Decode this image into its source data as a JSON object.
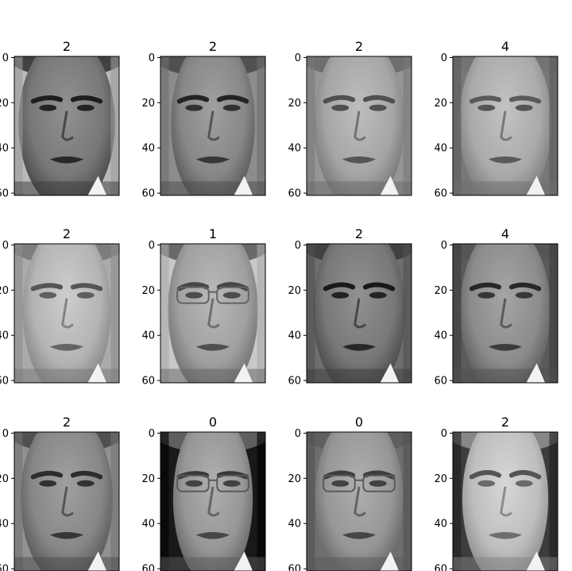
{
  "figure": {
    "type": "image-grid",
    "rows": 3,
    "cols": 4,
    "colormap": "gray",
    "y_ticks": [
      0,
      20,
      40,
      60
    ],
    "panels": [
      {
        "title": "2",
        "face": {
          "faceW": 0.92,
          "brow": 0.45,
          "bg": 185,
          "fg": 120,
          "shade": 20
        }
      },
      {
        "title": "2",
        "face": {
          "faceW": 0.8,
          "brow": 0.6,
          "bg": 140,
          "fg": 135,
          "shade": 30
        }
      },
      {
        "title": "2",
        "face": {
          "faceW": 0.86,
          "brow": 0.55,
          "bg": 150,
          "fg": 165,
          "shade": 15
        }
      },
      {
        "title": "4",
        "face": {
          "faceW": 0.88,
          "brow": 0.4,
          "bg": 120,
          "fg": 170,
          "shade": 10
        }
      },
      {
        "title": "2",
        "face": {
          "faceW": 0.84,
          "brow": 0.4,
          "bg": 170,
          "fg": 180,
          "shade": 25
        }
      },
      {
        "title": "1",
        "face": {
          "faceW": 0.86,
          "brow": 0.7,
          "bg": 200,
          "fg": 160,
          "shade": 20,
          "glasses": true
        }
      },
      {
        "title": "2",
        "face": {
          "faceW": 0.88,
          "brow": 0.6,
          "bg": 110,
          "fg": 120,
          "shade": 25
        }
      },
      {
        "title": "4",
        "face": {
          "faceW": 0.86,
          "brow": 0.55,
          "bg": 90,
          "fg": 140,
          "shade": 30
        }
      },
      {
        "title": "2",
        "face": {
          "faceW": 0.88,
          "brow": 0.5,
          "bg": 145,
          "fg": 135,
          "shade": 20
        }
      },
      {
        "title": "0",
        "face": {
          "faceW": 0.76,
          "brow": 0.45,
          "bg": 25,
          "fg": 150,
          "shade": 25,
          "glasses": true
        }
      },
      {
        "title": "0",
        "face": {
          "faceW": 0.84,
          "brow": 0.65,
          "bg": 110,
          "fg": 150,
          "shade": 20,
          "glasses": true
        }
      },
      {
        "title": "2",
        "face": {
          "faceW": 0.82,
          "brow": 0.75,
          "bg": 60,
          "fg": 190,
          "shade": 35
        }
      }
    ]
  }
}
